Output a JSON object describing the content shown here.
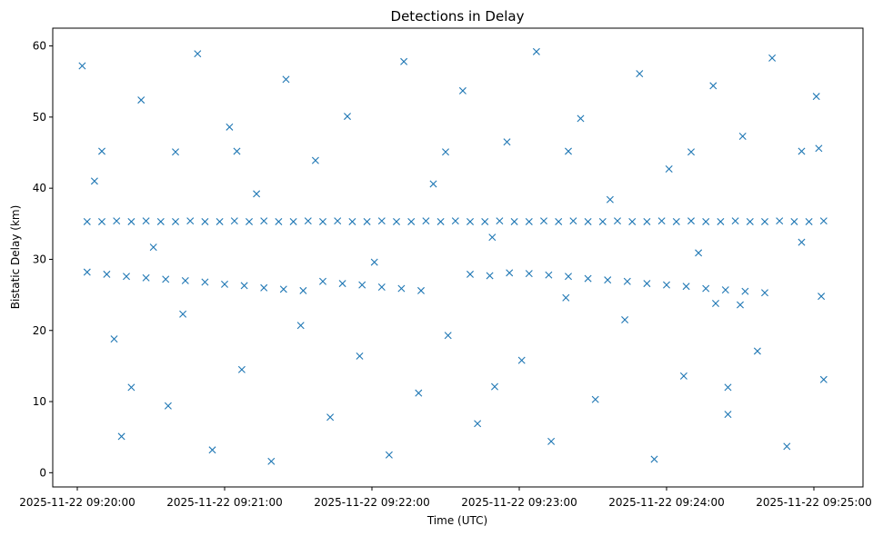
{
  "chart_data": {
    "type": "scatter",
    "title": "Detections in Delay",
    "xlabel": "Time (UTC)",
    "ylabel": "Bistatic Delay (km)",
    "x_ticks": [
      "2025-11-22 09:20:00",
      "2025-11-22 09:21:00",
      "2025-11-22 09:22:00",
      "2025-11-22 09:23:00",
      "2025-11-22 09:24:00",
      "2025-11-22 09:25:00"
    ],
    "y_ticks": [
      0,
      10,
      20,
      30,
      40,
      50,
      60
    ],
    "xlim": [
      "2025-11-22 09:19:50",
      "2025-11-22 09:25:20"
    ],
    "ylim": [
      -2,
      62.5
    ],
    "marker": "x",
    "color": "#1f77b4",
    "grid": false,
    "series": [
      {
        "points": [
          [
            "2025-11-22 09:20:04",
            35.3
          ],
          [
            "2025-11-22 09:20:10",
            35.3
          ],
          [
            "2025-11-22 09:20:16",
            35.4
          ],
          [
            "2025-11-22 09:20:22",
            35.3
          ],
          [
            "2025-11-22 09:20:28",
            35.4
          ],
          [
            "2025-11-22 09:20:34",
            35.3
          ],
          [
            "2025-11-22 09:20:40",
            35.3
          ],
          [
            "2025-11-22 09:20:46",
            35.4
          ],
          [
            "2025-11-22 09:20:52",
            35.3
          ],
          [
            "2025-11-22 09:20:58",
            35.3
          ],
          [
            "2025-11-22 09:21:04",
            35.4
          ],
          [
            "2025-11-22 09:21:10",
            35.3
          ],
          [
            "2025-11-22 09:21:16",
            35.4
          ],
          [
            "2025-11-22 09:21:22",
            35.3
          ],
          [
            "2025-11-22 09:21:28",
            35.3
          ],
          [
            "2025-11-22 09:21:34",
            35.4
          ],
          [
            "2025-11-22 09:21:40",
            35.3
          ],
          [
            "2025-11-22 09:21:46",
            35.4
          ],
          [
            "2025-11-22 09:21:52",
            35.3
          ],
          [
            "2025-11-22 09:21:58",
            35.3
          ],
          [
            "2025-11-22 09:22:04",
            35.4
          ],
          [
            "2025-11-22 09:22:10",
            35.3
          ],
          [
            "2025-11-22 09:22:16",
            35.3
          ],
          [
            "2025-11-22 09:22:22",
            35.4
          ],
          [
            "2025-11-22 09:22:28",
            35.3
          ],
          [
            "2025-11-22 09:22:34",
            35.4
          ],
          [
            "2025-11-22 09:22:40",
            35.3
          ],
          [
            "2025-11-22 09:22:46",
            35.3
          ],
          [
            "2025-11-22 09:22:52",
            35.4
          ],
          [
            "2025-11-22 09:22:58",
            35.3
          ],
          [
            "2025-11-22 09:23:04",
            35.3
          ],
          [
            "2025-11-22 09:23:10",
            35.4
          ],
          [
            "2025-11-22 09:23:16",
            35.3
          ],
          [
            "2025-11-22 09:23:22",
            35.4
          ],
          [
            "2025-11-22 09:23:28",
            35.3
          ],
          [
            "2025-11-22 09:23:34",
            35.3
          ],
          [
            "2025-11-22 09:23:40",
            35.4
          ],
          [
            "2025-11-22 09:23:46",
            35.3
          ],
          [
            "2025-11-22 09:23:52",
            35.3
          ],
          [
            "2025-11-22 09:23:58",
            35.4
          ],
          [
            "2025-11-22 09:24:04",
            35.3
          ],
          [
            "2025-11-22 09:24:10",
            35.4
          ],
          [
            "2025-11-22 09:24:16",
            35.3
          ],
          [
            "2025-11-22 09:24:22",
            35.3
          ],
          [
            "2025-11-22 09:24:28",
            35.4
          ],
          [
            "2025-11-22 09:24:34",
            35.3
          ],
          [
            "2025-11-22 09:24:40",
            35.3
          ],
          [
            "2025-11-22 09:24:46",
            35.4
          ],
          [
            "2025-11-22 09:24:52",
            35.3
          ],
          [
            "2025-11-22 09:24:58",
            35.3
          ],
          [
            "2025-11-22 09:25:04",
            35.4
          ],
          [
            "2025-11-22 09:20:04",
            28.2
          ],
          [
            "2025-11-22 09:20:12",
            27.9
          ],
          [
            "2025-11-22 09:20:20",
            27.6
          ],
          [
            "2025-11-22 09:20:28",
            27.4
          ],
          [
            "2025-11-22 09:20:36",
            27.2
          ],
          [
            "2025-11-22 09:20:44",
            27.0
          ],
          [
            "2025-11-22 09:20:52",
            26.8
          ],
          [
            "2025-11-22 09:21:00",
            26.5
          ],
          [
            "2025-11-22 09:21:08",
            26.3
          ],
          [
            "2025-11-22 09:21:16",
            26.0
          ],
          [
            "2025-11-22 09:21:24",
            25.8
          ],
          [
            "2025-11-22 09:21:32",
            25.6
          ],
          [
            "2025-11-22 09:21:40",
            26.9
          ],
          [
            "2025-11-22 09:21:48",
            26.6
          ],
          [
            "2025-11-22 09:21:56",
            26.4
          ],
          [
            "2025-11-22 09:22:04",
            26.1
          ],
          [
            "2025-11-22 09:22:12",
            25.9
          ],
          [
            "2025-11-22 09:22:20",
            25.6
          ],
          [
            "2025-11-22 09:22:40",
            27.9
          ],
          [
            "2025-11-22 09:22:48",
            27.7
          ],
          [
            "2025-11-22 09:22:56",
            28.1
          ],
          [
            "2025-11-22 09:23:04",
            28.0
          ],
          [
            "2025-11-22 09:23:12",
            27.8
          ],
          [
            "2025-11-22 09:23:20",
            27.6
          ],
          [
            "2025-11-22 09:23:28",
            27.3
          ],
          [
            "2025-11-22 09:23:36",
            27.1
          ],
          [
            "2025-11-22 09:23:44",
            26.9
          ],
          [
            "2025-11-22 09:23:52",
            26.6
          ],
          [
            "2025-11-22 09:24:00",
            26.4
          ],
          [
            "2025-11-22 09:24:08",
            26.2
          ],
          [
            "2025-11-22 09:24:16",
            25.9
          ],
          [
            "2025-11-22 09:24:24",
            25.7
          ],
          [
            "2025-11-22 09:24:32",
            25.5
          ],
          [
            "2025-11-22 09:24:40",
            25.3
          ],
          [
            "2025-11-22 09:24:20",
            23.8
          ],
          [
            "2025-11-22 09:24:30",
            23.6
          ],
          [
            "2025-11-22 09:20:10",
            45.2
          ],
          [
            "2025-11-22 09:20:40",
            45.1
          ],
          [
            "2025-11-22 09:21:05",
            45.2
          ],
          [
            "2025-11-22 09:22:30",
            45.1
          ],
          [
            "2025-11-22 09:23:20",
            45.2
          ],
          [
            "2025-11-22 09:24:10",
            45.1
          ],
          [
            "2025-11-22 09:24:55",
            45.2
          ],
          [
            "2025-11-22 09:20:22",
            12.0
          ],
          [
            "2025-11-22 09:22:50",
            12.1
          ],
          [
            "2025-11-22 09:24:25",
            12.0
          ],
          [
            "2025-11-22 09:20:02",
            57.2
          ],
          [
            "2025-11-22 09:20:07",
            41.0
          ],
          [
            "2025-11-22 09:20:15",
            18.8
          ],
          [
            "2025-11-22 09:20:18",
            5.1
          ],
          [
            "2025-11-22 09:20:26",
            52.4
          ],
          [
            "2025-11-22 09:20:31",
            31.7
          ],
          [
            "2025-11-22 09:20:37",
            9.4
          ],
          [
            "2025-11-22 09:20:43",
            22.3
          ],
          [
            "2025-11-22 09:20:49",
            58.9
          ],
          [
            "2025-11-22 09:20:55",
            3.2
          ],
          [
            "2025-11-22 09:21:02",
            48.6
          ],
          [
            "2025-11-22 09:21:07",
            14.5
          ],
          [
            "2025-11-22 09:21:13",
            39.2
          ],
          [
            "2025-11-22 09:21:19",
            1.6
          ],
          [
            "2025-11-22 09:21:25",
            55.3
          ],
          [
            "2025-11-22 09:21:31",
            20.7
          ],
          [
            "2025-11-22 09:21:37",
            43.9
          ],
          [
            "2025-11-22 09:21:43",
            7.8
          ],
          [
            "2025-11-22 09:21:50",
            50.1
          ],
          [
            "2025-11-22 09:21:55",
            16.4
          ],
          [
            "2025-11-22 09:22:01",
            29.6
          ],
          [
            "2025-11-22 09:22:07",
            2.5
          ],
          [
            "2025-11-22 09:22:13",
            57.8
          ],
          [
            "2025-11-22 09:22:19",
            11.2
          ],
          [
            "2025-11-22 09:22:25",
            40.6
          ],
          [
            "2025-11-22 09:22:31",
            19.3
          ],
          [
            "2025-11-22 09:22:37",
            53.7
          ],
          [
            "2025-11-22 09:22:43",
            6.9
          ],
          [
            "2025-11-22 09:22:49",
            33.1
          ],
          [
            "2025-11-22 09:22:55",
            46.5
          ],
          [
            "2025-11-22 09:23:01",
            15.8
          ],
          [
            "2025-11-22 09:23:07",
            59.2
          ],
          [
            "2025-11-22 09:23:13",
            4.4
          ],
          [
            "2025-11-22 09:23:19",
            24.6
          ],
          [
            "2025-11-22 09:23:25",
            49.8
          ],
          [
            "2025-11-22 09:23:31",
            10.3
          ],
          [
            "2025-11-22 09:23:37",
            38.4
          ],
          [
            "2025-11-22 09:23:43",
            21.5
          ],
          [
            "2025-11-22 09:23:49",
            56.1
          ],
          [
            "2025-11-22 09:23:55",
            1.9
          ],
          [
            "2025-11-22 09:24:01",
            42.7
          ],
          [
            "2025-11-22 09:24:07",
            13.6
          ],
          [
            "2025-11-22 09:24:13",
            30.9
          ],
          [
            "2025-11-22 09:24:19",
            54.4
          ],
          [
            "2025-11-22 09:24:25",
            8.2
          ],
          [
            "2025-11-22 09:24:31",
            47.3
          ],
          [
            "2025-11-22 09:24:37",
            17.1
          ],
          [
            "2025-11-22 09:24:43",
            58.3
          ],
          [
            "2025-11-22 09:24:49",
            3.7
          ],
          [
            "2025-11-22 09:24:55",
            32.4
          ],
          [
            "2025-11-22 09:25:01",
            52.9
          ],
          [
            "2025-11-22 09:25:04",
            13.1
          ],
          [
            "2025-11-22 09:25:03",
            24.8
          ],
          [
            "2025-11-22 09:25:02",
            45.6
          ]
        ]
      }
    ]
  }
}
